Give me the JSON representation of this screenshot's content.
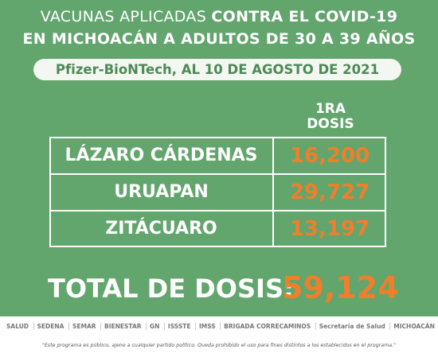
{
  "header": {
    "title_line1_normal": "VACUNAS APLICADAS",
    "title_line1_bold": "CONTRA EL COVID-19",
    "title_line2": "EN MICHOACÁN A ADULTOS DE 30 A 39 AÑOS",
    "subtitle": "Pfizer-BioNTech, AL 10 DE AGOSTO DE 2021"
  },
  "table": {
    "column_header": [
      "1RA",
      "DOSIS"
    ],
    "rows": [
      [
        "LÁZARO CÁRDENAS",
        "16,200"
      ],
      [
        "URUAPAN",
        "29,727"
      ],
      [
        "ZITÁCUARO",
        "13,197"
      ]
    ]
  },
  "total": {
    "label": "TOTAL DE DOSIS:",
    "value": "59,124"
  },
  "footer": {
    "logos": [
      "SALUD",
      "SEDENA",
      "SEMAR",
      "BIENESTAR",
      "GN",
      "ISSSTE",
      "IMSS",
      "BRIGADA CORRECAMINOS",
      "Secretaría de Salud",
      "MICHOACÁN"
    ],
    "disclaimer": "\"Este programa es público, ajeno a cualquier partido político. Queda prohibido el uso para fines distintos a los establecidos en el programa.\""
  }
}
